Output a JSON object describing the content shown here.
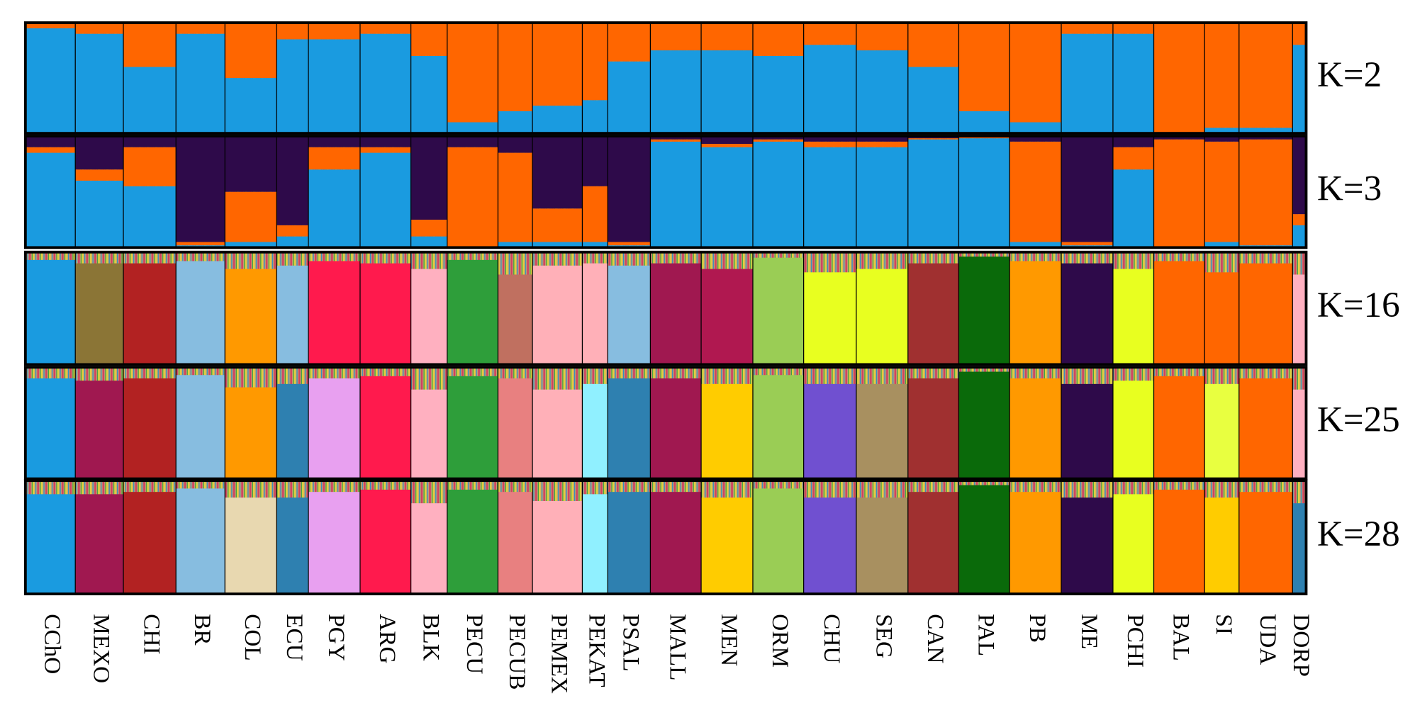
{
  "chart_data": {
    "type": "structure",
    "categories": [
      "CChO",
      "MEXO",
      "CHI",
      "BR",
      "COL",
      "ECU",
      "PGY",
      "ARG",
      "BLK",
      "PECU",
      "PECUB",
      "PEMEX",
      "PEKAT",
      "PSAL",
      "MALL",
      "MEN",
      "ORM",
      "CHU",
      "SEG",
      "CAN",
      "PAL",
      "PB",
      "ME",
      "PCHI",
      "BAL",
      "SI",
      "UDA",
      "DORP"
    ],
    "panels": [
      {
        "label": "K=2",
        "series": [
          {
            "color": "#1a9be0",
            "values": [
              0.95,
              0.9,
              0.6,
              0.9,
              0.5,
              0.85,
              0.85,
              0.9,
              0.7,
              0.1,
              0.2,
              0.25,
              0.3,
              0.65,
              0.75,
              0.75,
              0.7,
              0.8,
              0.75,
              0.6,
              0.2,
              0.1,
              0.9,
              0.9,
              0,
              0.05,
              0.05,
              0.8
            ]
          },
          {
            "color": "#ff6600",
            "values": [
              0.05,
              0.1,
              0.4,
              0.1,
              0.5,
              0.15,
              0.15,
              0.1,
              0.3,
              0.9,
              0.8,
              0.75,
              0.7,
              0.35,
              0.25,
              0.25,
              0.3,
              0.2,
              0.25,
              0.4,
              0.8,
              0.9,
              0.1,
              0.1,
              1,
              0.95,
              0.95,
              0.2
            ]
          }
        ]
      },
      {
        "label": "K=3",
        "series": [
          {
            "color": "#1a9be0",
            "values": [
              0.85,
              0.6,
              0.55,
              0.02,
              0.05,
              0.1,
              0.7,
              0.85,
              0.1,
              0,
              0.05,
              0.05,
              0.05,
              0.02,
              0.95,
              0.9,
              0.95,
              0.9,
              0.9,
              0.97,
              0.98,
              0.05,
              0.02,
              0.7,
              0,
              0.05,
              0.02,
              0.2
            ]
          },
          {
            "color": "#ff6600",
            "values": [
              0.05,
              0.1,
              0.35,
              0.03,
              0.45,
              0.1,
              0.2,
              0.05,
              0.15,
              0.9,
              0.8,
              0.3,
              0.5,
              0.03,
              0.02,
              0.03,
              0.02,
              0.05,
              0.05,
              0.01,
              0.01,
              0.9,
              0.03,
              0.2,
              0.97,
              0.9,
              0.95,
              0.1
            ]
          },
          {
            "color": "#2e0a4a",
            "values": [
              0.1,
              0.3,
              0.1,
              0.95,
              0.5,
              0.8,
              0.1,
              0.1,
              0.75,
              0.1,
              0.15,
              0.65,
              0.45,
              0.95,
              0.03,
              0.07,
              0.03,
              0.05,
              0.05,
              0.02,
              0.01,
              0.05,
              0.95,
              0.1,
              0.03,
              0.05,
              0.03,
              0.7
            ]
          }
        ]
      },
      {
        "label": "K=16",
        "series": [
          {
            "colors": [
              "#1a9be0",
              "#8b7536",
              "#b22222",
              "#87bde0",
              "#ff9900",
              "#87bde0",
              "#ff1a4d",
              "#ff1a4d",
              "#ffb0c0",
              "#2e9e3a",
              "#c07060",
              "#ffb0b8",
              "#ffb0b8",
              "#87bde0",
              "#a01850",
              "#b01850",
              "#9acd55",
              "#e8ff20",
              "#e8ff20",
              "#a03030",
              "#0a6a0a",
              "#ff9900",
              "#2e0a4a",
              "#e8ff20",
              "#ff6600",
              "#ff6600",
              "#ff6600",
              "#ffb0c0"
            ],
            "values": [
              0.93,
              0.9,
              0.9,
              0.92,
              0.85,
              0.88,
              0.92,
              0.9,
              0.85,
              0.93,
              0.8,
              0.88,
              0.9,
              0.88,
              0.9,
              0.85,
              0.95,
              0.82,
              0.85,
              0.9,
              0.96,
              0.92,
              0.9,
              0.85,
              0.92,
              0.82,
              0.9,
              0.8
            ]
          }
        ]
      },
      {
        "label": "K=25",
        "series": [
          {
            "colors": [
              "#1a9be0",
              "#a01850",
              "#b22222",
              "#87bde0",
              "#ff9900",
              "#2e80b0",
              "#e8a0f0",
              "#ff1a4d",
              "#ffb0c0",
              "#2e9e3a",
              "#e88080",
              "#ffb0b8",
              "#90f0ff",
              "#2e80b0",
              "#a01850",
              "#ffcc00",
              "#9acd55",
              "#7050d0",
              "#a89060",
              "#a03030",
              "#0a6a0a",
              "#ff9900",
              "#2e0a4a",
              "#e8ff20",
              "#ff6600",
              "#e8ff40",
              "#ff6600",
              "#ffb0c0"
            ],
            "values": [
              0.9,
              0.88,
              0.9,
              0.93,
              0.82,
              0.85,
              0.9,
              0.92,
              0.8,
              0.92,
              0.9,
              0.8,
              0.85,
              0.9,
              0.9,
              0.85,
              0.93,
              0.85,
              0.85,
              0.9,
              0.96,
              0.9,
              0.85,
              0.88,
              0.92,
              0.85,
              0.9,
              0.8
            ]
          }
        ]
      },
      {
        "label": "K=28",
        "series": [
          {
            "colors": [
              "#1a9be0",
              "#a01850",
              "#b22222",
              "#87bde0",
              "#e8d8b0",
              "#2e80b0",
              "#e8a0f0",
              "#ff1a4d",
              "#ffb0c0",
              "#2e9e3a",
              "#e88080",
              "#ffb0b8",
              "#90f0ff",
              "#2e80b0",
              "#a01850",
              "#ffcc00",
              "#9acd55",
              "#7050d0",
              "#a89060",
              "#a03030",
              "#0a6a0a",
              "#ff9900",
              "#2e0a4a",
              "#e8ff20",
              "#ff6600",
              "#ffcc00",
              "#ff6600",
              "#2e80b0"
            ],
            "values": [
              0.88,
              0.88,
              0.9,
              0.93,
              0.85,
              0.85,
              0.9,
              0.92,
              0.8,
              0.92,
              0.9,
              0.82,
              0.88,
              0.9,
              0.9,
              0.85,
              0.93,
              0.85,
              0.85,
              0.9,
              0.96,
              0.9,
              0.85,
              0.88,
              0.92,
              0.85,
              0.9,
              0.8
            ]
          }
        ]
      }
    ]
  }
}
